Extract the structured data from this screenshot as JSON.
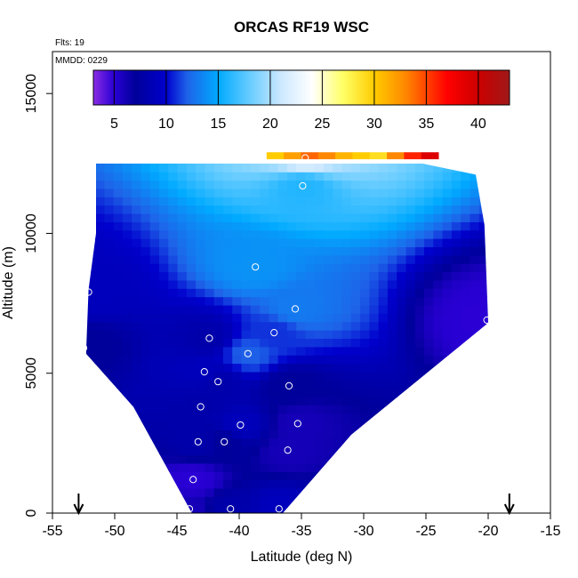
{
  "chart_data": {
    "type": "heatmap",
    "title": "ORCAS RF19 WSC",
    "notes": {
      "flights": "Flts: 19",
      "date": "MMDD: 0229"
    },
    "xlabel": "Latitude (deg N)",
    "ylabel": "Altitude (m)",
    "xlim": [
      -55,
      -15
    ],
    "ylim": [
      0,
      16500
    ],
    "xticks": [
      -55,
      -50,
      -45,
      -40,
      -35,
      -30,
      -25,
      -20,
      -15
    ],
    "yticks": [
      0,
      5000,
      10000,
      15000
    ],
    "colorbar": {
      "range": [
        3,
        43
      ],
      "ticks": [
        5,
        10,
        15,
        20,
        25,
        30,
        35,
        40
      ],
      "stops": [
        {
          "value": 3,
          "color": "#8a2be2"
        },
        {
          "value": 5,
          "color": "#2a00d5"
        },
        {
          "value": 7,
          "color": "#00009a"
        },
        {
          "value": 10,
          "color": "#0000cd"
        },
        {
          "value": 12,
          "color": "#1e62e8"
        },
        {
          "value": 15,
          "color": "#00aaff"
        },
        {
          "value": 18,
          "color": "#66ccff"
        },
        {
          "value": 21,
          "color": "#cce8ff"
        },
        {
          "value": 24,
          "color": "#ffffff"
        },
        {
          "value": 27,
          "color": "#ffff66"
        },
        {
          "value": 30,
          "color": "#ffcc00"
        },
        {
          "value": 33,
          "color": "#ff8800"
        },
        {
          "value": 37,
          "color": "#ff0000"
        },
        {
          "value": 40,
          "color": "#cc0000"
        },
        {
          "value": 43,
          "color": "#a01818"
        }
      ]
    },
    "field_outline": [
      [
        -51.5,
        12500
      ],
      [
        -25.3,
        12500
      ],
      [
        -21.0,
        12100
      ],
      [
        -20.3,
        10300
      ],
      [
        -20.0,
        6800
      ],
      [
        -31.0,
        2800
      ],
      [
        -36.5,
        0
      ],
      [
        -43.8,
        0
      ],
      [
        -48.5,
        3800
      ],
      [
        -52.3,
        5700
      ],
      [
        -52.1,
        8000
      ],
      [
        -51.5,
        10000
      ]
    ],
    "top_strip": {
      "lat_range": [
        -37.8,
        -24.0
      ],
      "alt_range": [
        12650,
        12900
      ],
      "values": [
        30,
        32,
        34,
        33,
        31,
        30,
        29,
        33,
        36,
        39
      ]
    },
    "observations": [
      {
        "lat": -34.7,
        "alt": 12700,
        "value": 22
      },
      {
        "lat": -34.9,
        "alt": 11700,
        "value": 16
      },
      {
        "lat": -38.7,
        "alt": 8800,
        "value": 14
      },
      {
        "lat": -35.5,
        "alt": 7300,
        "value": 13
      },
      {
        "lat": -52.1,
        "alt": 7900,
        "value": 9
      },
      {
        "lat": -20.1,
        "alt": 6900,
        "value": 5
      },
      {
        "lat": -42.4,
        "alt": 6250,
        "value": 8
      },
      {
        "lat": -37.2,
        "alt": 6450,
        "value": 11
      },
      {
        "lat": -39.3,
        "alt": 5700,
        "value": 12
      },
      {
        "lat": -52.5,
        "alt": 5900,
        "value": 7
      },
      {
        "lat": -42.8,
        "alt": 5050,
        "value": 9
      },
      {
        "lat": -41.7,
        "alt": 4700,
        "value": 8
      },
      {
        "lat": -36.0,
        "alt": 4550,
        "value": 7
      },
      {
        "lat": -43.1,
        "alt": 3800,
        "value": 8
      },
      {
        "lat": -39.9,
        "alt": 3150,
        "value": 9
      },
      {
        "lat": -35.3,
        "alt": 3200,
        "value": 6
      },
      {
        "lat": -43.3,
        "alt": 2550,
        "value": 8
      },
      {
        "lat": -41.2,
        "alt": 2550,
        "value": 7
      },
      {
        "lat": -36.1,
        "alt": 2250,
        "value": 6
      },
      {
        "lat": -43.7,
        "alt": 1200,
        "value": 5
      },
      {
        "lat": -44.0,
        "alt": 150,
        "value": 6
      },
      {
        "lat": -40.7,
        "alt": 150,
        "value": 8
      },
      {
        "lat": -36.8,
        "alt": 150,
        "value": 9
      }
    ],
    "markers": [
      {
        "lat": -52.9,
        "symbol": "down-arrow"
      },
      {
        "lat": -18.3,
        "symbol": "down-arrow"
      }
    ],
    "grid": false,
    "legend": "top"
  }
}
